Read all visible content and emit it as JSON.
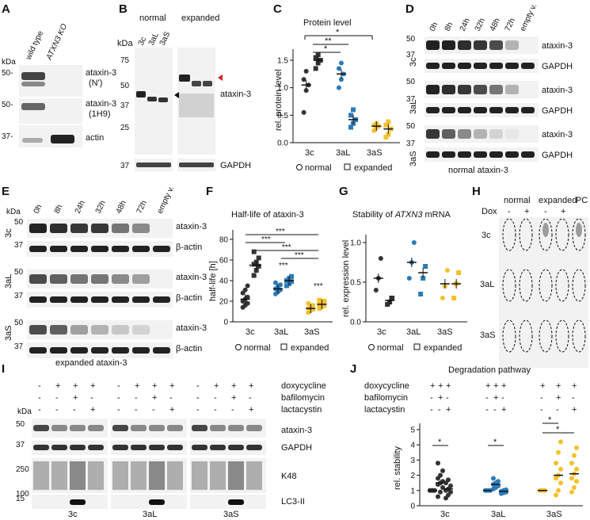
{
  "colors": {
    "normal": "#333333",
    "aL": "#2a7ab8",
    "aS": "#f2c12e",
    "arrow_red": "#d9232e"
  },
  "panels": [
    "A",
    "B",
    "C",
    "D",
    "E",
    "F",
    "G",
    "H",
    "I",
    "J"
  ],
  "panel_a": {
    "kda": "kDa",
    "lanes": [
      "wild type",
      "ATXN3 KO"
    ],
    "markers": [
      "50-",
      "50-",
      "37-"
    ],
    "labels": [
      "ataxin-3",
      "(N')",
      "ataxin-3",
      "(1H9)",
      "actin"
    ]
  },
  "panel_b": {
    "groups": [
      "normal",
      "expanded"
    ],
    "lanes": [
      "3c",
      "3aL",
      "3aS"
    ],
    "kda": "kDa",
    "markers": [
      "75",
      "50",
      "37",
      "25",
      "37"
    ],
    "labels": [
      "ataxin-3",
      "GAPDH"
    ]
  },
  "panel_c": {
    "title": "Protein level",
    "ylabel": "rel. protein level",
    "yticks": [
      "0.0",
      "0.5",
      "1.0",
      "1.5"
    ],
    "categories": [
      "3c",
      "3aL",
      "3aS"
    ],
    "legend": [
      "normal",
      "expanded"
    ],
    "sig": [
      "*",
      "**",
      "*"
    ]
  },
  "panel_d": {
    "times": [
      "0h",
      "8h",
      "24h",
      "32h",
      "48h",
      "72h",
      "empty v."
    ],
    "rows": [
      "3c",
      "3aL",
      "3aS"
    ],
    "markers": [
      "50",
      "37",
      "50",
      "37",
      "50",
      "37"
    ],
    "labels": [
      "ataxin-3",
      "GAPDH",
      "ataxin-3",
      "GAPDH",
      "ataxin-3",
      "GAPDH"
    ],
    "caption": "normal ataxin-3"
  },
  "panel_e": {
    "kda": "kDa",
    "times": [
      "0h",
      "8h",
      "24h",
      "32h",
      "48h",
      "72h",
      "empty v."
    ],
    "rows": [
      "3c",
      "3aL",
      "3aS"
    ],
    "markers": [
      "50",
      "37",
      "50",
      "37",
      "50",
      "37"
    ],
    "labels": [
      "ataxin-3",
      "β-actin",
      "ataxin-3",
      "β-actin",
      "ataxin-3",
      "β-actin"
    ],
    "caption": "expanded ataxin-3"
  },
  "panel_f": {
    "title": "Half-life of ataxin-3",
    "ylabel": "half-life [h]",
    "yticks": [
      "0",
      "20",
      "40",
      "60",
      "80"
    ],
    "categories": [
      "3c",
      "3aL",
      "3aS"
    ],
    "legend": [
      "normal",
      "expanded"
    ],
    "sig": [
      "***",
      "***",
      "***",
      "***",
      "***",
      "***",
      "***"
    ]
  },
  "panel_g": {
    "title_pre": "Stability of ",
    "title_gene": "ATXN3",
    "title_post": " mRNA",
    "ylabel": "rel. expression level",
    "yticks": [
      "0.0",
      "0.5",
      "1.0"
    ],
    "categories": [
      "3c",
      "3aL",
      "3aS"
    ],
    "legend": [
      "normal",
      "expanded"
    ]
  },
  "panel_h": {
    "groups": [
      "normal",
      "expanded",
      "PC"
    ],
    "dox": "Dox",
    "signs": [
      "-",
      "+",
      "-",
      "+"
    ],
    "rows": [
      "3c",
      "3aL",
      "3aS"
    ]
  },
  "panel_i": {
    "treatments": [
      "doxycycline",
      "bafilomycin",
      "lactacystin"
    ],
    "signs": [
      [
        "-",
        "+",
        "+",
        "+",
        "-",
        "+",
        "+",
        "+",
        "-",
        "+",
        "+",
        "+"
      ],
      [
        "-",
        "-",
        "+",
        "-",
        "-",
        "-",
        "+",
        "-",
        "-",
        "-",
        "+",
        "-"
      ],
      [
        "-",
        "-",
        "-",
        "+",
        "-",
        "-",
        "-",
        "+",
        "-",
        "-",
        "-",
        "+"
      ]
    ],
    "kda": "kDa",
    "markers": [
      "50",
      "37",
      "250",
      "100",
      "15"
    ],
    "labels": [
      "ataxin-3",
      "GAPDH",
      "K48",
      "LC3-II"
    ],
    "groups": [
      "3c",
      "3aL",
      "3aS"
    ]
  },
  "panel_j": {
    "title": "Degradation pathway",
    "treatments": [
      "doxycycline",
      "bafilomycin",
      "lactacystin"
    ],
    "signs": [
      [
        "+",
        "+",
        "+",
        "+",
        "+",
        "+",
        "+",
        "+",
        "+"
      ],
      [
        "-",
        "+",
        "-",
        "-",
        "+",
        "-",
        "-",
        "+",
        "-"
      ],
      [
        "-",
        "-",
        "+",
        "-",
        "-",
        "+",
        "-",
        "-",
        "+"
      ]
    ],
    "ylabel": "rel. stability",
    "yticks": [
      "0",
      "1",
      "2",
      "3",
      "4",
      "5"
    ],
    "categories": [
      "3c",
      "3aL",
      "3aS"
    ],
    "sig": [
      "*",
      "*",
      "*",
      "*"
    ]
  },
  "chart_data": [
    {
      "type": "scatter",
      "title": "Protein level",
      "ylabel": "rel. protein level",
      "categories": [
        "3c",
        "3aL",
        "3aS"
      ],
      "ylim": [
        0,
        1.75
      ],
      "series": [
        {
          "name": "normal",
          "values": [
            1.05,
            1.25,
            0.3
          ],
          "points": [
            [
              0.55,
              0.95,
              1.05,
              1.15,
              1.3
            ],
            [
              1.0,
              1.15,
              1.25,
              1.35,
              1.45
            ],
            [
              0.22,
              0.28,
              0.3,
              0.32,
              0.35
            ]
          ]
        },
        {
          "name": "expanded",
          "values": [
            1.5,
            0.42,
            0.25
          ],
          "points": [
            [
              1.35,
              1.45,
              1.5,
              1.55,
              1.6
            ],
            [
              0.28,
              0.35,
              0.42,
              0.5,
              0.6
            ],
            [
              0.1,
              0.15,
              0.25,
              0.32,
              0.38
            ]
          ]
        }
      ]
    },
    {
      "type": "scatter",
      "title": "Half-life of ataxin-3",
      "ylabel": "half-life [h]",
      "categories": [
        "3c",
        "3aL",
        "3aS"
      ],
      "ylim": [
        0,
        85
      ],
      "series": [
        {
          "name": "normal",
          "values": [
            22,
            32,
            13
          ],
          "points": [
            [
              14,
              16,
              18,
              20,
              22,
              24,
              28,
              31,
              35
            ],
            [
              27,
              29,
              31,
              32,
              34,
              36,
              38
            ],
            [
              9,
              11,
              12,
              13,
              14,
              16,
              18
            ]
          ]
        },
        {
          "name": "expanded",
          "values": [
            55,
            40,
            17
          ],
          "points": [
            [
              45,
              50,
              54,
              56,
              58,
              62,
              68
            ],
            [
              35,
              37,
              39,
              40,
              42,
              44
            ],
            [
              13,
              15,
              16,
              17,
              18,
              20,
              21
            ]
          ]
        }
      ]
    },
    {
      "type": "scatter",
      "title": "Stability of ATXN3 mRNA",
      "ylabel": "rel. expression level",
      "categories": [
        "3c",
        "3aL",
        "3aS"
      ],
      "ylim": [
        0,
        1.05
      ],
      "series": [
        {
          "name": "normal",
          "values": [
            0.55,
            0.75,
            0.48
          ],
          "points": [
            [
              0.4,
              0.55,
              0.8
            ],
            [
              0.55,
              0.75,
              1.0
            ],
            [
              0.3,
              0.45,
              0.65
            ]
          ]
        },
        {
          "name": "expanded",
          "values": [
            0.27,
            0.62,
            0.48
          ],
          "points": [
            [
              0.22,
              0.25,
              0.3
            ],
            [
              0.35,
              0.55,
              0.7
            ],
            [
              0.3,
              0.48,
              0.62
            ]
          ]
        }
      ]
    },
    {
      "type": "scatter",
      "title": "Degradation pathway",
      "ylabel": "rel. stability",
      "categories": [
        "3c",
        "3aL",
        "3aS"
      ],
      "ylim": [
        0,
        5
      ],
      "groups": [
        {
          "category": "3c",
          "means": [
            1.0,
            1.5,
            1.1
          ],
          "points": [
            [
              1,
              1,
              1,
              1,
              1
            ],
            [
              0.6,
              0.9,
              1.2,
              1.4,
              1.5,
              1.6,
              1.8,
              2.0,
              2.3,
              2.8
            ],
            [
              0.5,
              0.7,
              0.9,
              1.0,
              1.1,
              1.3,
              1.5,
              1.7
            ]
          ]
        },
        {
          "category": "3aL",
          "means": [
            1.0,
            1.4,
            0.95
          ],
          "points": [
            [
              1,
              1,
              1,
              1
            ],
            [
              1.1,
              1.2,
              1.3,
              1.4,
              1.5,
              1.6,
              1.8
            ],
            [
              0.8,
              0.85,
              0.9,
              0.95,
              1.0,
              1.05
            ]
          ]
        },
        {
          "category": "3aS",
          "means": [
            1.0,
            2.0,
            2.1
          ],
          "points": [
            [
              1,
              1,
              1,
              1
            ],
            [
              0.7,
              1.0,
              1.5,
              1.8,
              2.0,
              2.4,
              2.8,
              3.5,
              4.2
            ],
            [
              0.9,
              1.2,
              1.6,
              1.8,
              2.1,
              2.4,
              2.8,
              3.3,
              3.8
            ]
          ]
        }
      ]
    }
  ]
}
